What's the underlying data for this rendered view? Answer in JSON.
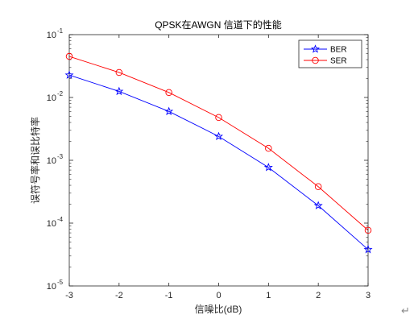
{
  "chart_data": {
    "type": "line",
    "title": "QPSK在AWGN 信道下的性能",
    "xlabel": "信噪比(dB)",
    "ylabel": "误符号率和误比特率",
    "x": [
      -3,
      -2,
      -1,
      0,
      1,
      2,
      3
    ],
    "x_ticks": [
      "-3",
      "-2",
      "-1",
      "0",
      "1",
      "2",
      "3"
    ],
    "xlim": [
      -3,
      3
    ],
    "ylim": [
      1e-05,
      0.1
    ],
    "yscale": "log",
    "y_ticks": [
      {
        "base": "10",
        "exp": "-5",
        "value": 1e-05
      },
      {
        "base": "10",
        "exp": "-4",
        "value": 0.0001
      },
      {
        "base": "10",
        "exp": "-3",
        "value": 0.001
      },
      {
        "base": "10",
        "exp": "-2",
        "value": 0.01
      },
      {
        "base": "10",
        "exp": "-1",
        "value": 0.1
      }
    ],
    "grid": false,
    "legend_position": "top-right",
    "series": [
      {
        "name": "BER",
        "color": "#0000ff",
        "marker": "star",
        "values": [
          0.0227,
          0.0125,
          0.006,
          0.0024,
          0.00077,
          0.00019,
          3.8e-05
        ]
      },
      {
        "name": "SER",
        "color": "#ff0000",
        "marker": "circle",
        "values": [
          0.045,
          0.025,
          0.012,
          0.0048,
          0.00155,
          0.00038,
          7.7e-05
        ]
      }
    ]
  },
  "page_mark": "↵"
}
